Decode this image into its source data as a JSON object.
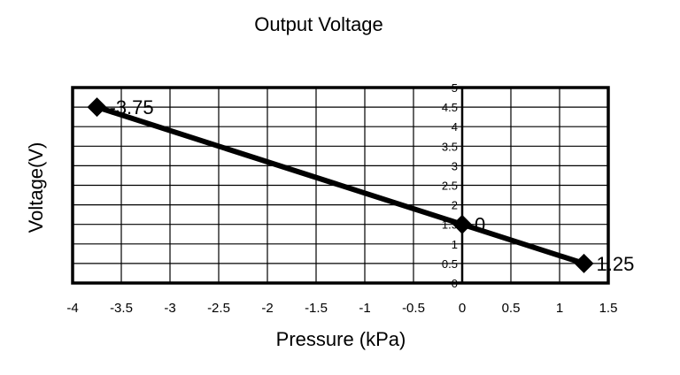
{
  "chart_data": {
    "type": "line",
    "title": "Output Voltage",
    "xlabel": "Pressure (kPa)",
    "ylabel": "Voltage(V)",
    "xlim": [
      -4,
      1.5
    ],
    "ylim": [
      0,
      5
    ],
    "x_ticks": [
      "-4",
      "-3.5",
      "-3",
      "-2.5",
      "-2",
      "-1.5",
      "-1",
      "-0.5",
      "0",
      "0.5",
      "1",
      "1.5"
    ],
    "y_ticks": [
      "0",
      "0.5",
      "1",
      "1.5",
      "2",
      "2.5",
      "3",
      "3.5",
      "4",
      "4.5",
      "5"
    ],
    "grid": true,
    "legend": "none",
    "line_color": "#000000",
    "marker": "diamond",
    "series": [
      {
        "x": [
          -3.75,
          0,
          1.25
        ],
        "y": [
          4.5,
          1.5,
          0.5
        ],
        "labels": [
          "-3.75",
          "0",
          "1.25"
        ]
      }
    ]
  }
}
